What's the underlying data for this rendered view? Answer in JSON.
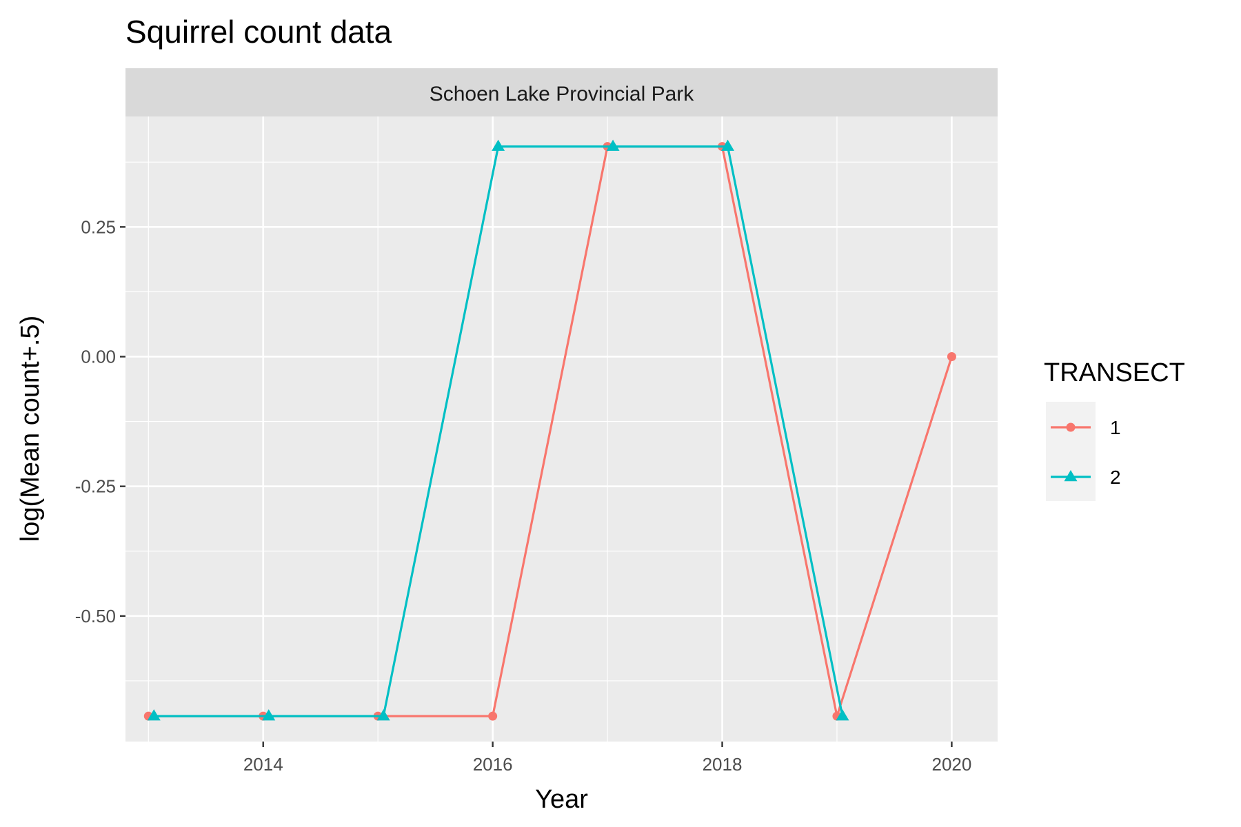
{
  "chart_data": {
    "type": "line",
    "title": "Squirrel count data",
    "facet": "Schoen Lake Provincial Park",
    "xlabel": "Year",
    "ylabel": "log(Mean count+.5)",
    "x_ticks": [
      2014,
      2016,
      2018,
      2020
    ],
    "y_ticks": [
      0.25,
      0.0,
      -0.25,
      -0.5
    ],
    "y_tick_labels": [
      "0.25",
      "0.00",
      "-0.25",
      "-0.50"
    ],
    "x_tick_labels": [
      "2014",
      "2016",
      "2018",
      "2020"
    ],
    "xlim": [
      2012.8,
      2020.4
    ],
    "ylim": [
      -0.742,
      0.463
    ],
    "grid": true,
    "legend": {
      "title": "TRANSECT",
      "position": "right",
      "entries": [
        "1",
        "2"
      ]
    },
    "series": [
      {
        "name": "1",
        "color": "#F8766D",
        "marker": "circle",
        "x": [
          2013,
          2014,
          2015,
          2016,
          2017,
          2018,
          2019,
          2020
        ],
        "y": [
          -0.693,
          -0.693,
          -0.693,
          -0.693,
          0.405,
          0.405,
          -0.693,
          0.0
        ]
      },
      {
        "name": "2",
        "color": "#00BFC4",
        "marker": "triangle",
        "x": [
          2013,
          2014,
          2015,
          2016,
          2017,
          2018,
          2019
        ],
        "y": [
          -0.693,
          -0.693,
          -0.693,
          0.405,
          0.405,
          0.405,
          -0.693
        ]
      }
    ]
  }
}
